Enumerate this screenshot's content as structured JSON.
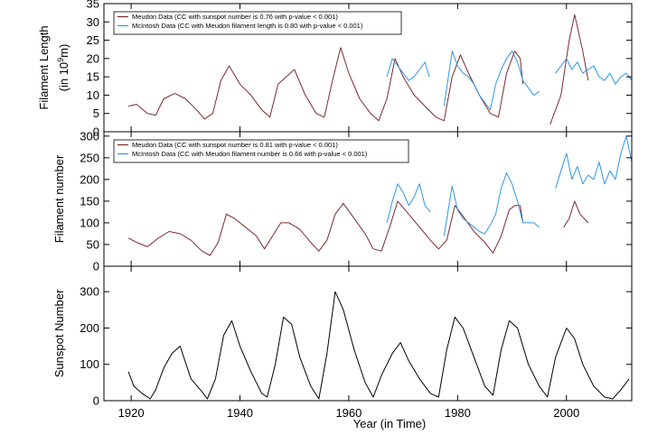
{
  "chart_data": [
    {
      "type": "line",
      "ylabel_line1": "Filament Length",
      "ylabel_line2_prefix": "(in 10",
      "ylabel_line2_sup": "9",
      "ylabel_line2_suffix": "m)",
      "ylim": [
        0,
        35
      ],
      "yticks": [
        "0",
        "5",
        "10",
        "15",
        "20",
        "25",
        "30",
        "35"
      ],
      "legend": [
        "Meudon Data  (CC with sunspot number is 0.76 with p-value < 0.001)",
        "McIntosh Data (CC with Meudon filament length is 0.80 with p-value < 0.001)"
      ],
      "series": [
        {
          "name": "Meudon Data",
          "color": "#7a2a2e",
          "x": [
            1919.5,
            1921,
            1923,
            1924.5,
            1926,
            1928,
            1930,
            1932,
            1933.5,
            1935,
            1936.5,
            1938,
            1940,
            1942,
            1944,
            1945.5,
            1947,
            1948.5,
            1950,
            1952,
            1954,
            1955.5,
            1957,
            1958.5,
            1960,
            1962,
            1964,
            1965.5,
            1967,
            1968.5,
            1970,
            1972,
            1974,
            1976,
            1977.5,
            1979,
            1980.5,
            1982,
            1984,
            1986,
            1987.5,
            1989,
            1990.5,
            1991.5,
            1992,
            1997,
            1999,
            2000.5,
            2001.5,
            2003,
            2004
          ],
          "y": [
            7,
            7.5,
            5,
            4.5,
            9,
            10.5,
            9,
            6,
            3.5,
            5,
            14,
            18,
            13,
            10,
            6,
            4,
            13,
            15,
            17,
            10,
            5,
            4,
            14,
            23,
            16,
            9,
            5,
            3,
            9,
            20,
            15,
            10,
            7,
            4,
            3,
            15,
            21,
            16,
            10,
            5,
            4,
            16,
            22,
            20,
            13,
            2,
            10,
            25,
            32,
            22,
            14
          ]
        },
        {
          "name": "McIntosh Data",
          "color": "#2f96e8",
          "x": [
            1967,
            1968,
            1969,
            1970,
            1971,
            1972,
            1973,
            1974,
            1974.8,
            1977.5,
            1979,
            1980,
            1981,
            1982,
            1983,
            1984,
            1985,
            1986,
            1987,
            1988,
            1989,
            1990,
            1991,
            1992,
            1994,
            1995,
            1998,
            1999,
            2000,
            2001,
            2002,
            2003,
            2004,
            2005,
            2006,
            2007,
            2008,
            2009,
            2010,
            2011,
            2012
          ],
          "y": [
            15,
            20,
            18,
            16,
            14,
            15,
            17,
            19,
            15,
            7,
            22,
            18,
            16,
            15,
            13,
            10,
            8,
            6,
            13,
            17,
            20,
            22,
            19,
            14,
            10,
            11,
            16,
            18,
            20,
            17,
            19,
            16,
            17,
            18,
            15,
            14,
            16,
            13,
            15,
            16,
            14
          ]
        }
      ]
    },
    {
      "type": "line",
      "ylabel": "Filament number",
      "ylim": [
        0,
        310
      ],
      "yticks": [
        "0",
        "50",
        "100",
        "150",
        "200",
        "250",
        "300"
      ],
      "legend": [
        "Meudon Data (CC with sunspot number is 0.81 with p-value < 0.001)",
        "McIntosh Data (CC with Meudon filament number is 0.66 with p-value < 0.001)"
      ],
      "series": [
        {
          "name": "Meudon Data",
          "color": "#7a2a2e",
          "x": [
            1919.5,
            1921,
            1923,
            1925,
            1927,
            1929,
            1931,
            1933,
            1934.5,
            1936,
            1937.5,
            1939,
            1941,
            1943,
            1944.5,
            1946,
            1947.5,
            1949,
            1951,
            1953,
            1954.5,
            1956,
            1957.5,
            1959,
            1961,
            1963,
            1964.5,
            1966,
            1967.5,
            1969,
            1971,
            1973,
            1975,
            1976.5,
            1978,
            1979.5,
            1981,
            1983,
            1985,
            1986.5,
            1988,
            1989.5,
            1990.5,
            1991.5,
            1992,
            1999.5,
            2000.5,
            2001.5,
            2002.5,
            2004
          ],
          "y": [
            65,
            55,
            45,
            65,
            80,
            75,
            60,
            35,
            25,
            55,
            120,
            110,
            90,
            70,
            40,
            70,
            100,
            100,
            85,
            55,
            35,
            60,
            120,
            145,
            110,
            75,
            40,
            35,
            90,
            150,
            120,
            90,
            60,
            40,
            60,
            140,
            115,
            80,
            55,
            30,
            70,
            130,
            140,
            140,
            100,
            90,
            110,
            150,
            120,
            100
          ]
        },
        {
          "name": "McIntosh Data",
          "color": "#2f96e8",
          "x": [
            1967,
            1968,
            1969,
            1970,
            1971,
            1972,
            1973,
            1974,
            1975,
            1977.5,
            1979,
            1980,
            1981,
            1982,
            1983,
            1984,
            1985,
            1986,
            1987,
            1988,
            1989,
            1990,
            1991,
            1992,
            1994,
            1995,
            1998,
            1999,
            2000,
            2001,
            2002,
            2003,
            2004,
            2005,
            2006,
            2007,
            2008,
            2009,
            2010,
            2011,
            2012
          ],
          "y": [
            100,
            150,
            190,
            170,
            140,
            160,
            190,
            140,
            125,
            70,
            185,
            130,
            110,
            100,
            90,
            80,
            75,
            95,
            120,
            180,
            215,
            190,
            150,
            100,
            100,
            90,
            180,
            220,
            260,
            200,
            230,
            190,
            210,
            200,
            240,
            190,
            220,
            200,
            260,
            300,
            240
          ]
        }
      ]
    },
    {
      "type": "line",
      "ylabel": "Sunspot Number",
      "xlabel": "Year (in Time)",
      "xlim": [
        1915,
        2012
      ],
      "xticks": [
        "1920",
        "1940",
        "1960",
        "1980",
        "2000"
      ],
      "ylim": [
        0,
        370
      ],
      "yticks": [
        "0",
        "100",
        "200",
        "300"
      ],
      "series": [
        {
          "color": "#000000",
          "x": [
            1919.5,
            1920.5,
            1922,
            1923.5,
            1924.5,
            1926,
            1927.5,
            1929,
            1931,
            1933,
            1934,
            1935.5,
            1937,
            1938.5,
            1940,
            1942,
            1944,
            1945,
            1946.5,
            1948,
            1949.5,
            1951,
            1953,
            1954.5,
            1956,
            1957.5,
            1959,
            1961,
            1963,
            1964.5,
            1966,
            1968,
            1969.5,
            1971,
            1973,
            1975,
            1976.5,
            1978,
            1979.5,
            1981,
            1983,
            1985,
            1986.5,
            1988,
            1989.5,
            1991,
            1993,
            1995,
            1996.5,
            1998,
            2000,
            2001.5,
            2003,
            2005,
            2007,
            2008.5,
            2010,
            2011.5
          ],
          "y": [
            80,
            40,
            20,
            5,
            30,
            90,
            130,
            150,
            60,
            25,
            5,
            60,
            180,
            220,
            150,
            80,
            20,
            10,
            100,
            230,
            210,
            120,
            40,
            5,
            130,
            300,
            250,
            140,
            50,
            10,
            70,
            130,
            160,
            110,
            60,
            20,
            10,
            140,
            230,
            200,
            120,
            40,
            15,
            140,
            220,
            200,
            100,
            40,
            10,
            120,
            200,
            170,
            100,
            40,
            10,
            5,
            30,
            60
          ]
        }
      ]
    }
  ]
}
